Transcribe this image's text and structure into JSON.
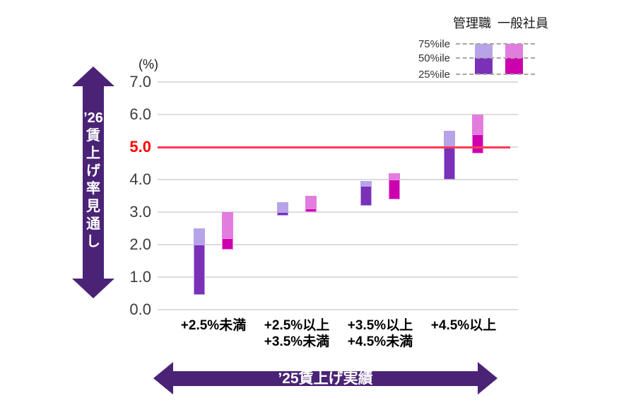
{
  "accent_colors": {
    "arrow_purple": "#4a2376",
    "grid_gray": "#dcdcdc",
    "red_tick": "#ff0000"
  },
  "left_arrow": {
    "label": "’26賃上げ率見通し",
    "label_lines": [
      "’26",
      "賃",
      "上",
      "げ",
      "率",
      "見",
      "通",
      "し"
    ]
  },
  "bottom_arrow": {
    "label": "’25賃上げ実績"
  },
  "chart_data": {
    "type": "floating-bar (percentile range)",
    "title": "",
    "xlabel": "’25賃上げ実績",
    "ylabel": "’26賃上げ率見通し",
    "y_unit": "(%)",
    "ylim": [
      0,
      7
    ],
    "grid": true,
    "y_ticks": [
      {
        "value": 7,
        "label": "7.0"
      },
      {
        "value": 6,
        "label": "6.0"
      },
      {
        "value": 5,
        "label": "5.0",
        "highlight": true
      },
      {
        "value": 4,
        "label": "4.0"
      },
      {
        "value": 3,
        "label": "3.0"
      },
      {
        "value": 2,
        "label": "2.0"
      },
      {
        "value": 1,
        "label": "1.0"
      },
      {
        "value": 0,
        "label": "0.0"
      }
    ],
    "reference_line": {
      "value": 5.0,
      "label": "5.0",
      "color": "#ff3a55"
    },
    "categories": [
      [
        "+2.5%未満"
      ],
      [
        "+2.5%以上",
        "+3.5%未満"
      ],
      [
        "+3.5%以上",
        "+4.5%未満"
      ],
      [
        "+4.5%以上"
      ]
    ],
    "series": [
      {
        "name": "管理職",
        "color_lower": "#7b30b8",
        "color_upper": "#b7a4e8",
        "border_lower": "#b7a4e8",
        "p25": [
          0.45,
          2.9,
          3.2,
          4.0
        ],
        "p50": [
          2.0,
          3.0,
          3.8,
          5.0
        ],
        "p75": [
          2.5,
          3.3,
          3.95,
          5.5
        ]
      },
      {
        "name": "一般社員",
        "color_lower": "#cc00ad",
        "color_upper": "#e27ddf",
        "border_lower": "#ee85ea",
        "p25": [
          1.85,
          3.0,
          3.4,
          4.8
        ],
        "p50": [
          2.2,
          3.1,
          4.0,
          5.4
        ],
        "p75": [
          3.0,
          3.5,
          4.2,
          6.0
        ]
      }
    ],
    "legend": {
      "percentile_labels": [
        "75%ile",
        "50%ile",
        "25%ile"
      ],
      "position": "top-right"
    }
  }
}
